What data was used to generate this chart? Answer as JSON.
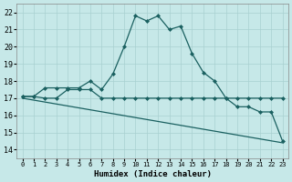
{
  "xlabel": "Humidex (Indice chaleur)",
  "xlim": [
    -0.5,
    23.5
  ],
  "ylim": [
    13.5,
    22.5
  ],
  "yticks": [
    14,
    15,
    16,
    17,
    18,
    19,
    20,
    21,
    22
  ],
  "xticks": [
    0,
    1,
    2,
    3,
    4,
    5,
    6,
    7,
    8,
    9,
    10,
    11,
    12,
    13,
    14,
    15,
    16,
    17,
    18,
    19,
    20,
    21,
    22,
    23
  ],
  "bg_color": "#c6e8e8",
  "grid_color": "#a8d0d0",
  "line_color": "#1a6060",
  "curve1_x": [
    0,
    1,
    2,
    3,
    4,
    5,
    6,
    7,
    8,
    9,
    10,
    11,
    12,
    13,
    14,
    15,
    16,
    17,
    18,
    19,
    20,
    21,
    22,
    23
  ],
  "curve1_y": [
    17.1,
    17.1,
    17.6,
    17.6,
    17.6,
    17.6,
    18.0,
    17.5,
    18.4,
    20.0,
    21.8,
    21.5,
    21.8,
    21.0,
    21.2,
    19.6,
    18.5,
    18.0,
    17.0,
    16.5,
    16.5,
    16.2,
    16.2,
    14.5
  ],
  "curve2_x": [
    0,
    1,
    2,
    3,
    4,
    5,
    6,
    7,
    8,
    9,
    10,
    11,
    12,
    13,
    14,
    15,
    16,
    17,
    18,
    19,
    20,
    21,
    22,
    23
  ],
  "curve2_y": [
    17.1,
    17.1,
    17.0,
    17.0,
    17.5,
    17.5,
    17.5,
    17.0,
    17.0,
    17.0,
    17.0,
    17.0,
    17.0,
    17.0,
    17.0,
    17.0,
    17.0,
    17.0,
    17.0,
    17.0,
    17.0,
    17.0,
    17.0,
    17.0
  ],
  "curve3_x": [
    0,
    23
  ],
  "curve3_y": [
    17.0,
    14.4
  ]
}
